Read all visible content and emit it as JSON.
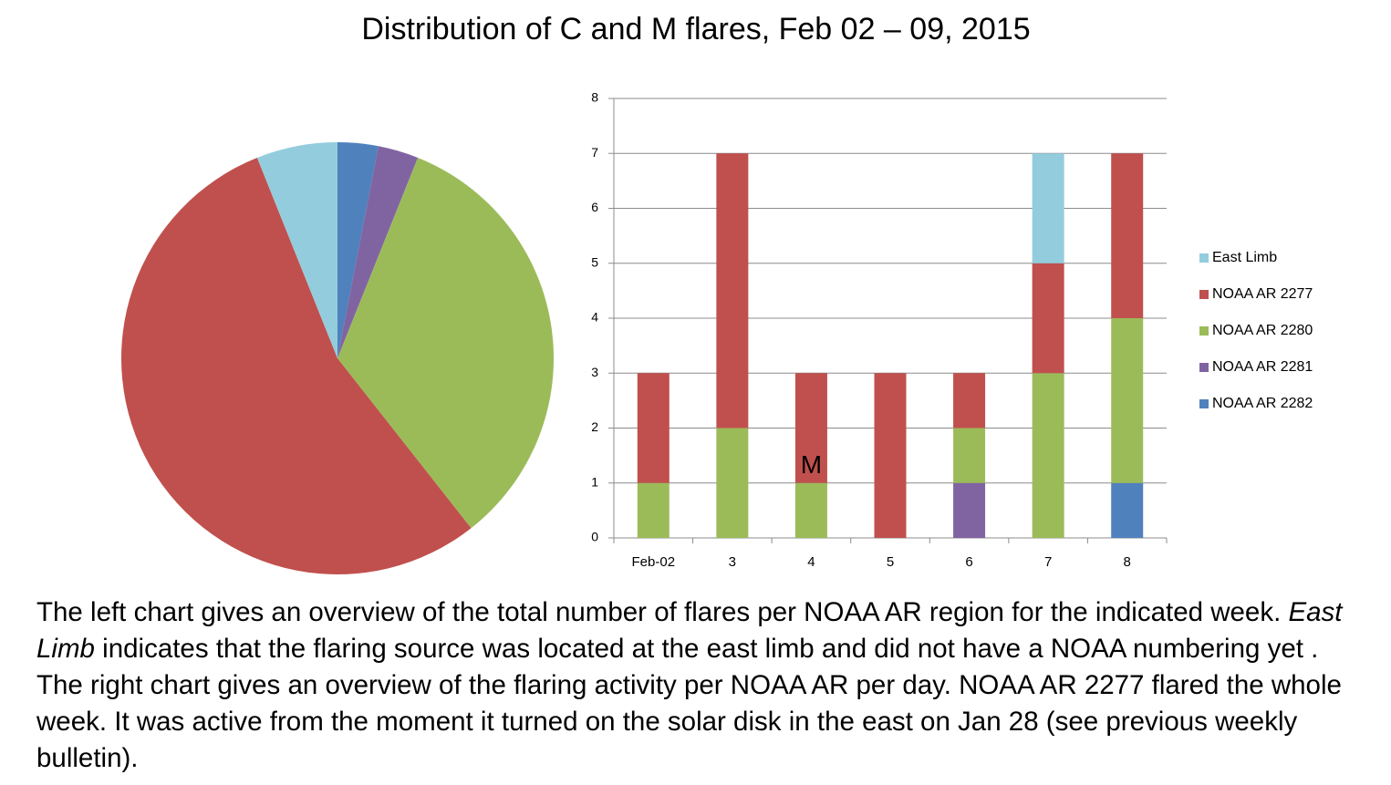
{
  "title": "Distribution of C and M flares, Feb 02 – 09, 2015",
  "caption": {
    "before": "The left chart gives an overview of the total number of flares per NOAA AR region for the indicated week. ",
    "italic": "East Limb",
    "after": " indicates that the flaring source was located at the east limb and did not have a NOAA numbering yet . The right chart gives an overview of the flaring activity per NOAA AR per day. NOAA AR 2277 flared the whole week. It was active from the moment it turned on the solar disk in the east on Jan 28 (see previous weekly bulletin)."
  },
  "chart_data": [
    {
      "type": "pie",
      "values": [
        1,
        1,
        11,
        18,
        2
      ],
      "colors": [
        "#4f81bd",
        "#8064a2",
        "#9bbb59",
        "#c0504d",
        "#93cddd"
      ]
    },
    {
      "type": "bar",
      "stacked": true,
      "categories": [
        "Feb-02",
        "3",
        "4",
        "5",
        "6",
        "7",
        "8"
      ],
      "series": [
        {
          "name": "NOAA AR 2282",
          "color": "#4f81bd",
          "values": [
            0,
            0,
            0,
            0,
            0,
            0,
            1
          ]
        },
        {
          "name": "NOAA AR 2281",
          "color": "#8064a2",
          "values": [
            0,
            0,
            0,
            0,
            1,
            0,
            0
          ]
        },
        {
          "name": "NOAA AR 2280",
          "color": "#9bbb59",
          "values": [
            1,
            2,
            1,
            0,
            1,
            3,
            3
          ]
        },
        {
          "name": "NOAA AR 2277",
          "color": "#c0504d",
          "values": [
            2,
            5,
            2,
            3,
            1,
            2,
            3
          ]
        },
        {
          "name": "East Limb",
          "color": "#93cddd",
          "values": [
            0,
            0,
            0,
            0,
            0,
            2,
            0
          ]
        }
      ],
      "ylim": [
        0,
        8
      ],
      "yticks": [
        0,
        1,
        2,
        3,
        4,
        5,
        6,
        7,
        8
      ],
      "grid": true,
      "annotations": [
        {
          "text": "M",
          "category": 2,
          "y": 1.3
        }
      ]
    }
  ]
}
